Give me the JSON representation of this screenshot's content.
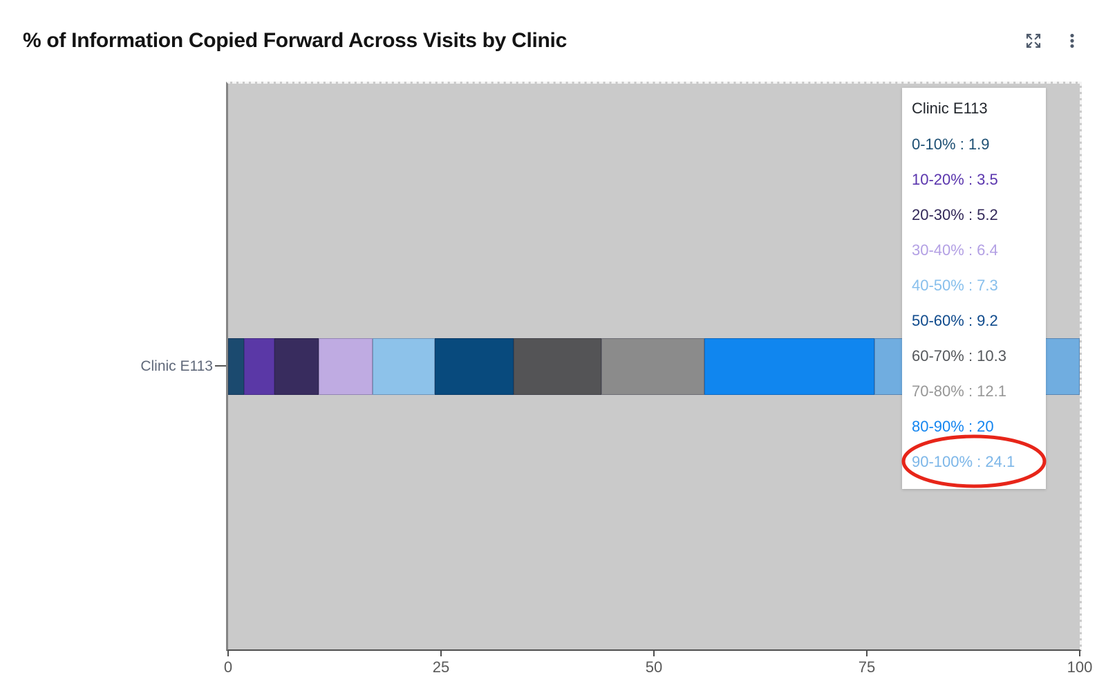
{
  "header": {
    "title": "% of Information Copied Forward Across Visits by Clinic",
    "icon_color": "#4e5a6b"
  },
  "chart_data": {
    "type": "bar",
    "orientation": "horizontal",
    "stacked": true,
    "title": "% of Information Copied Forward Across Visits by Clinic",
    "categories": [
      "Clinic E113"
    ],
    "xlim": [
      0,
      100
    ],
    "x_ticks": [
      0,
      25,
      50,
      75,
      100
    ],
    "plot_background": "#cacaca",
    "grid": false,
    "legend_position": "none",
    "series": [
      {
        "name": "0-10%",
        "value": 1.9,
        "bar_color": "#1b4a6f",
        "text_color": "#1d4f73"
      },
      {
        "name": "10-20%",
        "value": 3.5,
        "bar_color": "#5a38a6",
        "text_color": "#5a35ad"
      },
      {
        "name": "20-30%",
        "value": 5.2,
        "bar_color": "#382c5e",
        "text_color": "#322858"
      },
      {
        "name": "30-40%",
        "value": 6.4,
        "bar_color": "#bfabe2",
        "text_color": "#b3a0e4"
      },
      {
        "name": "40-50%",
        "value": 7.3,
        "bar_color": "#8dc2ea",
        "text_color": "#87bfec"
      },
      {
        "name": "50-60%",
        "value": 9.2,
        "bar_color": "#084a7d",
        "text_color": "#0f4a8c"
      },
      {
        "name": "60-70%",
        "value": 10.3,
        "bar_color": "#545456",
        "text_color": "#55585c"
      },
      {
        "name": "70-80%",
        "value": 12.1,
        "bar_color": "#8b8b8b",
        "text_color": "#979797"
      },
      {
        "name": "80-90%",
        "value": 20,
        "bar_color": "#1086ef",
        "text_color": "#1485f0"
      },
      {
        "name": "90-100%",
        "value": 24.1,
        "bar_color": "#70ade0",
        "text_color": "#7cb6e8"
      }
    ]
  },
  "axis": {
    "y_label": "Clinic E113",
    "x_tick_labels": [
      "0",
      "25",
      "50",
      "75",
      "100"
    ]
  },
  "tooltip": {
    "title": "Clinic E113",
    "separator": " : ",
    "highlighted_item": "90-100% : 24.1"
  },
  "annotation": {
    "shape": "ellipse",
    "stroke_color": "#e72519",
    "around": "90-100% : 24.1"
  }
}
